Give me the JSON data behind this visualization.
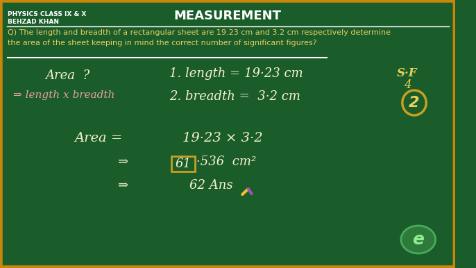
{
  "bg_color": "#1a5c2a",
  "border_color": "#c8860a",
  "title": "MEASUREMENT",
  "header_line1": "PHYSICS CLASS IX & X",
  "header_line2": "BEHZAD KHAN",
  "question": "Q) The length and breadth of a rectangular sheet are 19.23 cm and 3.2 cm respectively determine\nthe area of the sheet keeping in mind the correct number of significant figures?",
  "handwriting_color_white": "#ffffff",
  "handwriting_color_cream": "#f5f0d0",
  "handwriting_color_pink": "#e8a0a0",
  "handwriting_color_yellow": "#e8d060",
  "sf_color": "#e8d060",
  "circle_color": "#c8a020",
  "box_color": "#c8a020",
  "underline_color": "#ffffff",
  "pencil_yellow": "#f0c030",
  "pencil_purple": "#a050c0",
  "logo_face": "#2d7a3a",
  "logo_edge": "#4aaa5a",
  "logo_text": "#90ee90"
}
